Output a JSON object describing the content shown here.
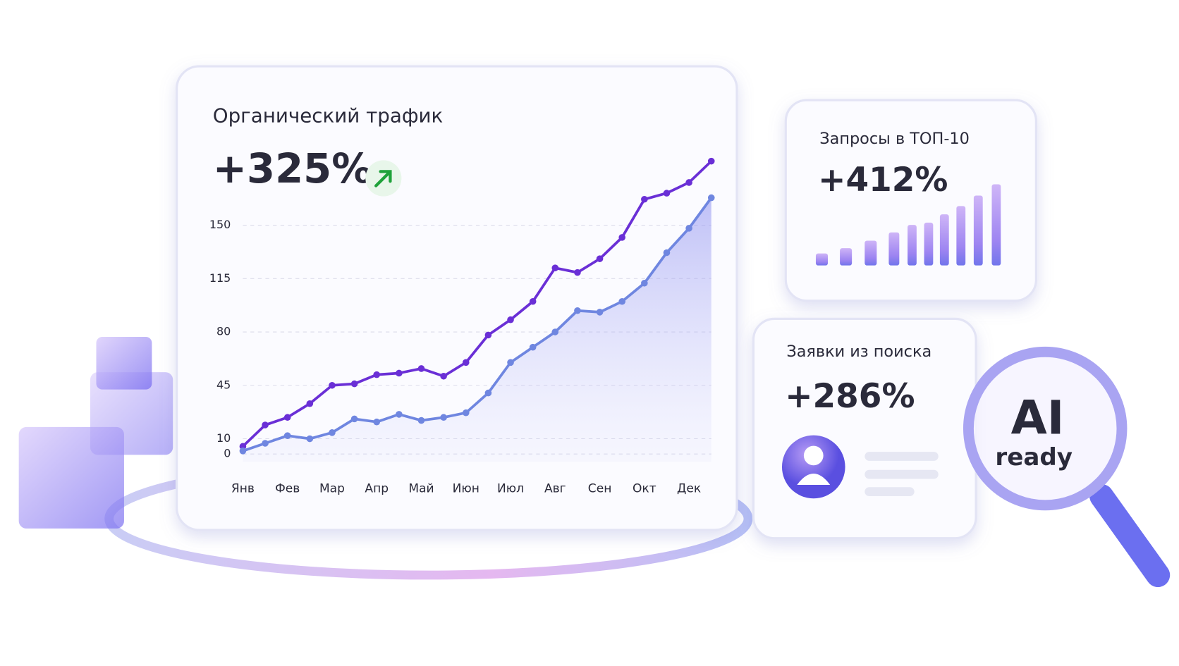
{
  "chart_data": {
    "type": "line",
    "title": "Органический трафик",
    "headline": "+325%",
    "categories": [
      "Янв",
      null,
      "Фев",
      null,
      "Мар",
      null,
      "Апр",
      null,
      "Май",
      null,
      "Июн",
      null,
      "Июл",
      null,
      "Авг",
      null,
      "Сен",
      null,
      "Окт",
      null,
      "Дек",
      null
    ],
    "series": [
      {
        "color": "#6a2fd6",
        "values": [
          5,
          19,
          24,
          33,
          45,
          46,
          52,
          53,
          56,
          51,
          60,
          78,
          88,
          100,
          122,
          119,
          128,
          142,
          167,
          171,
          178,
          192
        ]
      },
      {
        "color": "#6f86e0",
        "values": [
          2,
          7,
          12,
          10,
          14,
          23,
          21,
          26,
          22,
          24,
          27,
          40,
          60,
          70,
          80,
          94,
          93,
          100,
          112,
          132,
          148,
          168
        ]
      }
    ],
    "ylim": [
      -5,
      199
    ],
    "yticks": [
      0,
      10,
      45,
      80,
      115,
      150
    ],
    "grid": true
  },
  "cards": [
    {
      "title": "Запросы в ТОП-10",
      "value": "+412%"
    },
    {
      "title": "Заявки из поиска",
      "value": "+286%"
    }
  ],
  "badge": {
    "line1": "AI",
    "line2": "ready"
  }
}
